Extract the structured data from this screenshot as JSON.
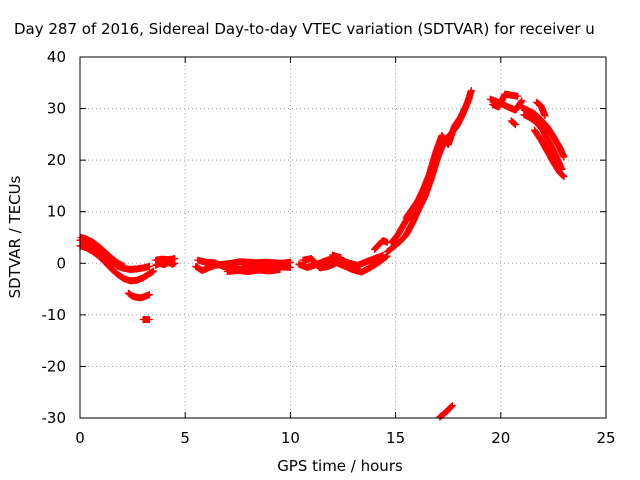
{
  "chart_data": {
    "type": "scatter",
    "title": "Day 287 of 2016, Sidereal Day-to-day VTEC variation (SDTVAR) for receiver u",
    "xlabel": "GPS time / hours",
    "ylabel": "SDTVAR / TECUs",
    "xlim": [
      0,
      25
    ],
    "ylim": [
      -30,
      40
    ],
    "xticks": [
      0,
      5,
      10,
      15,
      20,
      25
    ],
    "yticks": [
      -30,
      -20,
      -10,
      0,
      10,
      20,
      30,
      40
    ],
    "xtick_labels": [
      "0",
      "5",
      "10",
      "15",
      "20",
      "25"
    ],
    "ytick_labels": [
      "-30",
      "-20",
      "-10",
      "0",
      "10",
      "20",
      "30",
      "40"
    ],
    "grid": true,
    "marker": "plus",
    "color": "#ff0000",
    "series": [
      {
        "tracks": [
          [
            [
              0.0,
              4.5
            ],
            [
              0.3,
              4.2
            ],
            [
              0.6,
              3.6
            ],
            [
              0.9,
              2.6
            ],
            [
              1.2,
              1.5
            ],
            [
              1.5,
              0.3
            ],
            [
              1.8,
              -0.6
            ],
            [
              2.1,
              -1.0
            ],
            [
              2.4,
              -1.2
            ],
            [
              2.7,
              -1.1
            ],
            [
              3.0,
              -0.9
            ],
            [
              3.3,
              -0.6
            ]
          ],
          [
            [
              0.0,
              3.4
            ],
            [
              0.3,
              3.0
            ],
            [
              0.6,
              2.3
            ],
            [
              0.9,
              1.4
            ],
            [
              1.2,
              0.2
            ],
            [
              1.5,
              -1.1
            ],
            [
              1.8,
              -2.2
            ],
            [
              2.1,
              -3.0
            ],
            [
              2.4,
              -3.4
            ],
            [
              2.7,
              -3.3
            ],
            [
              3.0,
              -2.8
            ],
            [
              3.3,
              -2.0
            ],
            [
              3.5,
              -1.5
            ]
          ],
          [
            [
              0.05,
              5.0
            ],
            [
              0.3,
              4.7
            ],
            [
              0.6,
              4.1
            ],
            [
              0.9,
              3.2
            ],
            [
              1.2,
              2.1
            ],
            [
              1.5,
              1.0
            ],
            [
              1.8,
              0.0
            ],
            [
              2.1,
              -0.6
            ]
          ],
          [
            [
              2.3,
              -5.8
            ],
            [
              2.5,
              -6.4
            ],
            [
              2.7,
              -6.6
            ],
            [
              2.9,
              -6.7
            ],
            [
              3.1,
              -6.4
            ],
            [
              3.3,
              -6.1
            ]
          ],
          [
            [
              3.0,
              -10.9
            ],
            [
              3.3,
              -10.9
            ]
          ],
          [
            [
              3.6,
              -0.4
            ],
            [
              3.8,
              0.0
            ],
            [
              4.0,
              -0.3
            ],
            [
              4.2,
              0.2
            ],
            [
              4.4,
              -0.2
            ],
            [
              4.5,
              0.0
            ]
          ],
          [
            [
              3.6,
              0.6
            ],
            [
              3.9,
              0.8
            ],
            [
              4.2,
              0.7
            ],
            [
              4.5,
              0.9
            ]
          ],
          [
            [
              5.5,
              -0.6
            ],
            [
              5.8,
              -1.4
            ],
            [
              6.1,
              -0.9
            ],
            [
              6.4,
              -0.4
            ],
            [
              6.8,
              -0.2
            ],
            [
              7.2,
              0.0
            ],
            [
              7.6,
              0.3
            ],
            [
              8.0,
              0.2
            ],
            [
              8.4,
              0.1
            ],
            [
              8.8,
              0.2
            ],
            [
              9.2,
              0.1
            ],
            [
              9.6,
              0.0
            ],
            [
              10.0,
              0.2
            ]
          ],
          [
            [
              5.6,
              0.6
            ],
            [
              6.0,
              0.2
            ],
            [
              6.4,
              0.1
            ],
            [
              6.8,
              -0.6
            ],
            [
              7.2,
              -0.9
            ],
            [
              7.6,
              -1.2
            ],
            [
              8.0,
              -0.9
            ],
            [
              8.4,
              -1.1
            ],
            [
              8.8,
              -1.0
            ],
            [
              9.2,
              -1.1
            ],
            [
              9.6,
              -0.7
            ],
            [
              10.0,
              -0.8
            ]
          ],
          [
            [
              7.0,
              -1.6
            ],
            [
              7.5,
              -1.4
            ],
            [
              8.0,
              -1.6
            ],
            [
              8.5,
              -1.3
            ],
            [
              9.0,
              -1.5
            ],
            [
              9.5,
              -1.2
            ]
          ],
          [
            [
              10.4,
              -0.2
            ],
            [
              10.8,
              -0.8
            ],
            [
              11.2,
              -0.3
            ],
            [
              11.6,
              0.4
            ],
            [
              12.0,
              0.9
            ],
            [
              12.4,
              0.6
            ],
            [
              12.8,
              0.0
            ],
            [
              13.2,
              -0.4
            ],
            [
              13.6,
              0.3
            ],
            [
              14.0,
              0.9
            ],
            [
              14.4,
              1.5
            ]
          ],
          [
            [
              10.6,
              0.6
            ],
            [
              11.0,
              0.9
            ],
            [
              11.4,
              -0.9
            ],
            [
              11.8,
              -0.6
            ],
            [
              12.2,
              0.1
            ],
            [
              12.6,
              -0.6
            ],
            [
              13.0,
              -1.3
            ],
            [
              13.4,
              -1.7
            ],
            [
              13.8,
              -0.8
            ],
            [
              14.2,
              0.2
            ],
            [
              14.6,
              1.4
            ]
          ],
          [
            [
              12.0,
              1.6
            ],
            [
              12.2,
              1.3
            ],
            [
              12.4,
              1.1
            ]
          ],
          [
            [
              14.0,
              2.7
            ],
            [
              14.2,
              3.6
            ],
            [
              14.4,
              4.4
            ],
            [
              14.6,
              4.1
            ]
          ],
          [
            [
              14.6,
              2.2
            ],
            [
              14.9,
              3.2
            ],
            [
              15.2,
              4.2
            ],
            [
              15.5,
              5.5
            ],
            [
              15.8,
              7.8
            ],
            [
              16.1,
              10.5
            ],
            [
              16.4,
              13.0
            ],
            [
              16.7,
              16.5
            ],
            [
              17.0,
              20.5
            ],
            [
              17.3,
              23.5
            ],
            [
              17.6,
              25.0
            ],
            [
              17.9,
              26.5
            ],
            [
              18.2,
              29.0
            ],
            [
              18.5,
              32.0
            ]
          ],
          [
            [
              14.8,
              4.0
            ],
            [
              15.1,
              5.5
            ],
            [
              15.4,
              7.6
            ],
            [
              15.7,
              9.6
            ],
            [
              16.0,
              11.6
            ],
            [
              16.3,
              14.2
            ],
            [
              16.6,
              17.2
            ],
            [
              16.9,
              21.4
            ],
            [
              17.2,
              24.8
            ],
            [
              17.5,
              23.0
            ],
            [
              17.8,
              26.6
            ],
            [
              18.1,
              28.4
            ],
            [
              18.4,
              31.0
            ],
            [
              18.6,
              33.5
            ]
          ],
          [
            [
              15.5,
              8.8
            ],
            [
              15.8,
              10.6
            ],
            [
              16.1,
              12.4
            ]
          ],
          [
            [
              17.1,
              -29.8
            ],
            [
              17.3,
              -29.2
            ],
            [
              17.5,
              -28.4
            ],
            [
              17.7,
              -27.6
            ]
          ],
          [
            [
              19.5,
              31.8
            ],
            [
              19.8,
              31.4
            ],
            [
              20.1,
              30.8
            ],
            [
              20.4,
              30.2
            ],
            [
              20.7,
              29.7
            ],
            [
              21.0,
              31.5
            ]
          ],
          [
            [
              19.6,
              30.8
            ],
            [
              19.9,
              30.3
            ],
            [
              20.2,
              32.8
            ],
            [
              20.5,
              32.6
            ],
            [
              20.8,
              32.4
            ]
          ],
          [
            [
              20.5,
              27.6
            ],
            [
              20.7,
              26.9
            ]
          ],
          [
            [
              21.1,
              28.8
            ],
            [
              21.4,
              28.2
            ],
            [
              21.7,
              27.3
            ],
            [
              22.0,
              25.8
            ],
            [
              22.3,
              23.5
            ],
            [
              22.6,
              21.0
            ],
            [
              22.9,
              18.2
            ]
          ],
          [
            [
              21.0,
              30.2
            ],
            [
              21.3,
              29.6
            ],
            [
              21.6,
              29.0
            ],
            [
              21.9,
              27.8
            ],
            [
              22.2,
              26.5
            ],
            [
              22.5,
              24.6
            ],
            [
              22.8,
              22.4
            ],
            [
              23.0,
              20.6
            ]
          ],
          [
            [
              21.7,
              31.2
            ],
            [
              21.9,
              30.6
            ],
            [
              22.1,
              28.6
            ]
          ],
          [
            [
              21.6,
              25.8
            ],
            [
              21.9,
              24.0
            ],
            [
              22.2,
              21.8
            ],
            [
              22.5,
              19.6
            ],
            [
              22.8,
              17.6
            ],
            [
              23.0,
              16.8
            ]
          ]
        ]
      }
    ]
  }
}
